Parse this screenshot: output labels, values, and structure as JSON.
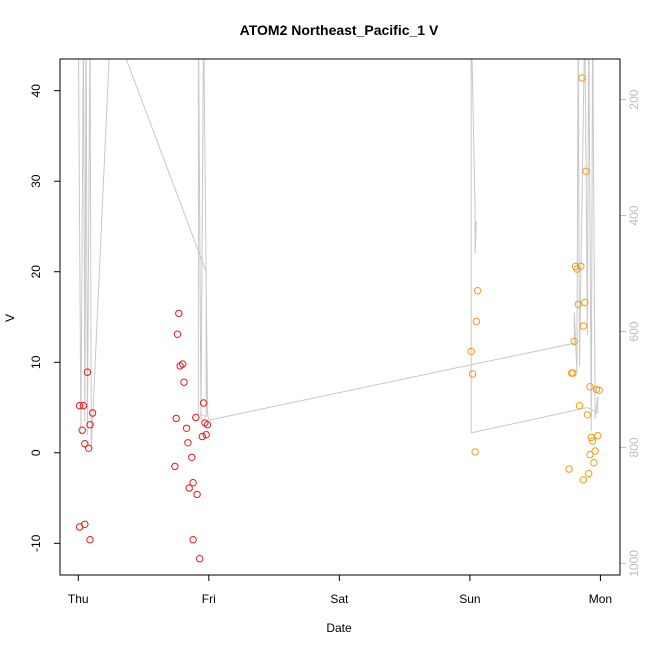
{
  "chart_data": {
    "type": "scatter",
    "title": "ATOM2 Northeast_Pacific_1 V",
    "xlabel": "Date",
    "ylabel": "V",
    "x_ticks": [
      {
        "value": 0,
        "label": "Thu"
      },
      {
        "value": 1,
        "label": "Fri"
      },
      {
        "value": 2,
        "label": "Sat"
      },
      {
        "value": 3,
        "label": "Sun"
      },
      {
        "value": 4,
        "label": "Mon"
      }
    ],
    "xlim": [
      -0.14,
      4.15
    ],
    "ylim": [
      -13.5,
      43.5
    ],
    "y_ticks": [
      -10,
      0,
      10,
      20,
      30,
      40
    ],
    "y2_ticks": [
      200,
      400,
      600,
      800,
      1000
    ],
    "y2lim": [
      1020,
      130
    ],
    "grid": false,
    "colors": {
      "red": "#e41a1c",
      "orange": "#f39c12",
      "trace": "#c8c8c8",
      "axis_right": "#bdbdbd"
    },
    "series": [
      {
        "color": "red",
        "points": [
          [
            0.01,
            5.2
          ],
          [
            0.03,
            2.5
          ],
          [
            0.04,
            5.2
          ],
          [
            0.05,
            1.0
          ],
          [
            0.07,
            8.9
          ],
          [
            0.08,
            0.5
          ],
          [
            0.09,
            3.1
          ],
          [
            0.11,
            4.4
          ],
          [
            0.01,
            -8.2
          ],
          [
            0.05,
            -7.9
          ],
          [
            0.09,
            -9.6
          ],
          [
            0.77,
            15.4
          ],
          [
            0.76,
            13.1
          ],
          [
            0.78,
            9.6
          ],
          [
            0.8,
            9.8
          ],
          [
            0.81,
            7.8
          ],
          [
            0.75,
            3.8
          ],
          [
            0.74,
            -1.5
          ],
          [
            0.83,
            2.7
          ],
          [
            0.84,
            1.1
          ],
          [
            0.85,
            -3.9
          ],
          [
            0.87,
            -0.5
          ],
          [
            0.88,
            -3.3
          ],
          [
            0.88,
            -9.6
          ],
          [
            0.9,
            3.9
          ],
          [
            0.91,
            -4.6
          ],
          [
            0.93,
            -11.7
          ],
          [
            0.95,
            1.8
          ],
          [
            0.96,
            5.5
          ],
          [
            0.97,
            3.3
          ],
          [
            0.99,
            3.1
          ],
          [
            0.98,
            2.0
          ]
        ]
      },
      {
        "color": "orange",
        "points": [
          [
            3.01,
            11.2
          ],
          [
            3.02,
            8.7
          ],
          [
            3.04,
            0.1
          ],
          [
            3.05,
            14.5
          ],
          [
            3.06,
            17.9
          ],
          [
            3.76,
            -1.8
          ],
          [
            3.78,
            8.8
          ],
          [
            3.79,
            8.8
          ],
          [
            3.8,
            12.3
          ],
          [
            3.81,
            20.6
          ],
          [
            3.82,
            20.3
          ],
          [
            3.83,
            16.4
          ],
          [
            3.84,
            5.2
          ],
          [
            3.85,
            20.6
          ],
          [
            3.86,
            41.4
          ],
          [
            3.87,
            14.0
          ],
          [
            3.88,
            16.6
          ],
          [
            3.89,
            31.1
          ],
          [
            3.87,
            -3.0
          ],
          [
            3.9,
            4.2
          ],
          [
            3.91,
            -2.3
          ],
          [
            3.92,
            7.3
          ],
          [
            3.92,
            -0.2
          ],
          [
            3.93,
            1.7
          ],
          [
            3.94,
            1.3
          ],
          [
            3.95,
            -1.1
          ],
          [
            3.96,
            0.2
          ],
          [
            3.97,
            7.0
          ],
          [
            3.98,
            1.9
          ],
          [
            3.99,
            6.9
          ]
        ]
      }
    ],
    "trace": [
      [
        0.0,
        48
      ],
      [
        0.02,
        2.0
      ],
      [
        0.04,
        48
      ],
      [
        0.05,
        3.5
      ],
      [
        0.06,
        48
      ],
      [
        0.07,
        2.0
      ],
      [
        0.09,
        48
      ],
      [
        0.1,
        0.5
      ],
      [
        0.25,
        48
      ],
      [
        0.98,
        20.0
      ],
      [
        0.98,
        4.0
      ],
      [
        0.92,
        4.3
      ],
      [
        0.92,
        48
      ],
      [
        0.94,
        3.6
      ],
      [
        0.96,
        48
      ],
      [
        0.99,
        4.4
      ],
      [
        1.0,
        3.6
      ],
      [
        3.0,
        9.7
      ],
      [
        3.8,
        12.1
      ],
      [
        3.8,
        15.5
      ],
      [
        3.82,
        8.9
      ],
      [
        3.83,
        48
      ],
      [
        3.84,
        9.6
      ],
      [
        3.88,
        48
      ],
      [
        3.9,
        13.0
      ],
      [
        3.91,
        48
      ],
      [
        3.93,
        2.4
      ],
      [
        3.94,
        48
      ],
      [
        3.96,
        3.8
      ],
      [
        3.98,
        6.2
      ],
      [
        3.98,
        4.4
      ],
      [
        3.9,
        5.0
      ],
      [
        3.01,
        2.2
      ],
      [
        3.01,
        48
      ],
      [
        3.04,
        27.0
      ],
      [
        3.04,
        22.0
      ],
      [
        3.05,
        25.6
      ]
    ]
  }
}
